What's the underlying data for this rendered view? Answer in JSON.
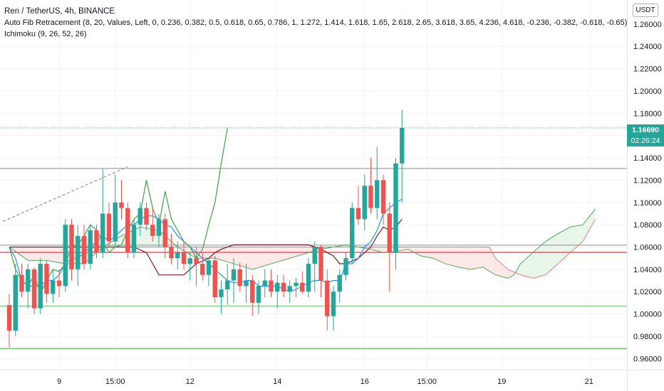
{
  "header": {
    "title": "Ren / TetherUS, 4h, BINANCE",
    "fib_indicator": "Auto Fib Retracement (8, 20, Values, Left, 0, 0.236, 0.382, 0.5, 0.618, 0.65, 0.786, 1, 1.272, 1.414, 1.618, 1.65, 2.618, 2.65, 3.618, 3.65, 4.236, 4.618, -0.236, -0.382, -0.618, -0.65)",
    "ichimoku_indicator": "Ichimoku (9, 26, 52, 26)"
  },
  "price_scale": {
    "currency": "USDT",
    "last_price": "1.16690",
    "countdown": "02:26:24"
  },
  "colors": {
    "bull": "#26a69a",
    "bear": "#ef5350",
    "conversion": "#2196f3",
    "base": "#801922",
    "lagging": "#43a047",
    "span_a": "#a5d6a7",
    "span_b": "#ef9a9a",
    "cloud_up": "#e8f5e9",
    "cloud_down": "#fde8e8"
  },
  "chart_data": {
    "type": "candlestick",
    "y_range": [
      0.95,
      1.2816
    ],
    "y_ticks": [
      "0.96000",
      "0.98000",
      "1.00000",
      "1.02000",
      "1.04000",
      "1.06000",
      "1.08000",
      "1.10000",
      "1.12000",
      "1.14000",
      "1.16000",
      "1.18000",
      "1.20000",
      "1.22000",
      "1.24000",
      "1.26000"
    ],
    "x_ticks": [
      {
        "i": 8,
        "label": "9"
      },
      {
        "i": 17,
        "label": "15:00"
      },
      {
        "i": 29,
        "label": "12"
      },
      {
        "i": 43,
        "label": "14"
      },
      {
        "i": 57,
        "label": "16"
      },
      {
        "i": 67,
        "label": "15:00"
      },
      {
        "i": 79,
        "label": "19"
      },
      {
        "i": 93,
        "label": "21"
      }
    ],
    "candles": [
      {
        "o": 1.008,
        "h": 1.018,
        "l": 0.97,
        "c": 0.985
      },
      {
        "o": 0.985,
        "h": 1.045,
        "l": 0.98,
        "c": 1.035
      },
      {
        "o": 1.035,
        "h": 1.045,
        "l": 1.015,
        "c": 1.02
      },
      {
        "o": 1.02,
        "h": 1.045,
        "l": 1.005,
        "c": 1.04
      },
      {
        "o": 1.04,
        "h": 1.042,
        "l": 1.0,
        "c": 1.005
      },
      {
        "o": 1.005,
        "h": 1.05,
        "l": 1.0,
        "c": 1.045
      },
      {
        "o": 1.045,
        "h": 1.048,
        "l": 1.01,
        "c": 1.018
      },
      {
        "o": 1.018,
        "h": 1.04,
        "l": 1.01,
        "c": 1.03
      },
      {
        "o": 1.03,
        "h": 1.04,
        "l": 1.015,
        "c": 1.025
      },
      {
        "o": 1.025,
        "h": 1.085,
        "l": 1.02,
        "c": 1.08
      },
      {
        "o": 1.08,
        "h": 1.085,
        "l": 1.03,
        "c": 1.04
      },
      {
        "o": 1.04,
        "h": 1.08,
        "l": 1.025,
        "c": 1.07
      },
      {
        "o": 1.07,
        "h": 1.08,
        "l": 1.04,
        "c": 1.045
      },
      {
        "o": 1.045,
        "h": 1.08,
        "l": 1.04,
        "c": 1.075
      },
      {
        "o": 1.075,
        "h": 1.08,
        "l": 1.05,
        "c": 1.055
      },
      {
        "o": 1.055,
        "h": 1.13,
        "l": 1.05,
        "c": 1.09
      },
      {
        "o": 1.09,
        "h": 1.1,
        "l": 1.06,
        "c": 1.065
      },
      {
        "o": 1.065,
        "h": 1.125,
        "l": 1.06,
        "c": 1.1
      },
      {
        "o": 1.1,
        "h": 1.12,
        "l": 1.085,
        "c": 1.095
      },
      {
        "o": 1.095,
        "h": 1.1,
        "l": 1.05,
        "c": 1.055
      },
      {
        "o": 1.055,
        "h": 1.085,
        "l": 1.05,
        "c": 1.08
      },
      {
        "o": 1.08,
        "h": 1.1,
        "l": 1.07,
        "c": 1.095
      },
      {
        "o": 1.095,
        "h": 1.1,
        "l": 1.075,
        "c": 1.08
      },
      {
        "o": 1.08,
        "h": 1.095,
        "l": 1.065,
        "c": 1.07
      },
      {
        "o": 1.07,
        "h": 1.09,
        "l": 1.06,
        "c": 1.085
      },
      {
        "o": 1.085,
        "h": 1.09,
        "l": 1.05,
        "c": 1.06
      },
      {
        "o": 1.06,
        "h": 1.072,
        "l": 1.045,
        "c": 1.05
      },
      {
        "o": 1.05,
        "h": 1.065,
        "l": 1.04,
        "c": 1.055
      },
      {
        "o": 1.055,
        "h": 1.065,
        "l": 1.04,
        "c": 1.045
      },
      {
        "o": 1.045,
        "h": 1.055,
        "l": 1.03,
        "c": 1.05
      },
      {
        "o": 1.05,
        "h": 1.06,
        "l": 1.025,
        "c": 1.045
      },
      {
        "o": 1.045,
        "h": 1.055,
        "l": 1.03,
        "c": 1.035
      },
      {
        "o": 1.035,
        "h": 1.05,
        "l": 1.025,
        "c": 1.048
      },
      {
        "o": 1.048,
        "h": 1.052,
        "l": 1.01,
        "c": 1.015
      },
      {
        "o": 1.015,
        "h": 1.03,
        "l": 1.0,
        "c": 1.022
      },
      {
        "o": 1.022,
        "h": 1.045,
        "l": 1.008,
        "c": 1.03
      },
      {
        "o": 1.03,
        "h": 1.05,
        "l": 1.01,
        "c": 1.04
      },
      {
        "o": 1.04,
        "h": 1.046,
        "l": 1.02,
        "c": 1.025
      },
      {
        "o": 1.025,
        "h": 1.045,
        "l": 1.01,
        "c": 1.03
      },
      {
        "o": 1.03,
        "h": 1.035,
        "l": 0.998,
        "c": 1.01
      },
      {
        "o": 1.01,
        "h": 1.03,
        "l": 1.0,
        "c": 1.025
      },
      {
        "o": 1.025,
        "h": 1.04,
        "l": 1.015,
        "c": 1.03
      },
      {
        "o": 1.03,
        "h": 1.04,
        "l": 1.015,
        "c": 1.02
      },
      {
        "o": 1.02,
        "h": 1.035,
        "l": 1.005,
        "c": 1.028
      },
      {
        "o": 1.028,
        "h": 1.035,
        "l": 1.015,
        "c": 1.02
      },
      {
        "o": 1.02,
        "h": 1.03,
        "l": 1.01,
        "c": 1.025
      },
      {
        "o": 1.025,
        "h": 1.032,
        "l": 1.015,
        "c": 1.028
      },
      {
        "o": 1.028,
        "h": 1.038,
        "l": 1.018,
        "c": 1.02
      },
      {
        "o": 1.02,
        "h": 1.05,
        "l": 1.015,
        "c": 1.045
      },
      {
        "o": 1.045,
        "h": 1.065,
        "l": 1.02,
        "c": 1.06
      },
      {
        "o": 1.06,
        "h": 1.062,
        "l": 1.015,
        "c": 1.03
      },
      {
        "o": 1.03,
        "h": 1.04,
        "l": 0.985,
        "c": 0.998
      },
      {
        "o": 0.998,
        "h": 1.025,
        "l": 0.985,
        "c": 1.02
      },
      {
        "o": 1.02,
        "h": 1.04,
        "l": 1.01,
        "c": 1.035
      },
      {
        "o": 1.035,
        "h": 1.055,
        "l": 1.03,
        "c": 1.05
      },
      {
        "o": 1.05,
        "h": 1.1,
        "l": 1.045,
        "c": 1.095
      },
      {
        "o": 1.095,
        "h": 1.115,
        "l": 1.08,
        "c": 1.085
      },
      {
        "o": 1.085,
        "h": 1.125,
        "l": 1.075,
        "c": 1.115
      },
      {
        "o": 1.115,
        "h": 1.14,
        "l": 1.09,
        "c": 1.095
      },
      {
        "o": 1.095,
        "h": 1.15,
        "l": 1.085,
        "c": 1.12
      },
      {
        "o": 1.12,
        "h": 1.125,
        "l": 1.08,
        "c": 1.09
      },
      {
        "o": 1.09,
        "h": 1.1,
        "l": 1.02,
        "c": 1.055
      },
      {
        "o": 1.055,
        "h": 1.14,
        "l": 1.04,
        "c": 1.135
      },
      {
        "o": 1.135,
        "h": 1.183,
        "l": 1.1,
        "c": 1.1669
      }
    ],
    "fib_lines": [
      {
        "y": 1.1305,
        "color": "#9598a1"
      },
      {
        "y": 1.0617,
        "color": "#9598a1"
      },
      {
        "y": 1.0552,
        "color": "#f23645"
      },
      {
        "y": 1.007,
        "color": "#81c784"
      },
      {
        "y": 0.969,
        "color": "#4caf50"
      }
    ],
    "trend_line": {
      "from": {
        "i": -1,
        "y": 1.083
      },
      "to": {
        "i": 19,
        "y": 1.132
      }
    },
    "tenkan": [
      [
        0,
        1.06
      ],
      [
        1,
        1.05
      ],
      [
        2,
        1.03
      ],
      [
        3,
        1.025
      ],
      [
        4,
        1.025
      ],
      [
        5,
        1.025
      ],
      [
        6,
        1.03
      ],
      [
        7,
        1.03
      ],
      [
        8,
        1.035
      ],
      [
        9,
        1.045
      ],
      [
        10,
        1.05
      ],
      [
        11,
        1.05
      ],
      [
        12,
        1.055
      ],
      [
        13,
        1.06
      ],
      [
        14,
        1.065
      ],
      [
        15,
        1.07
      ],
      [
        16,
        1.065
      ],
      [
        17,
        1.07
      ],
      [
        18,
        1.075
      ],
      [
        19,
        1.08
      ],
      [
        20,
        1.08
      ],
      [
        21,
        1.085
      ],
      [
        22,
        1.088
      ],
      [
        23,
        1.088
      ],
      [
        24,
        1.085
      ],
      [
        25,
        1.08
      ],
      [
        26,
        1.078
      ],
      [
        27,
        1.07
      ],
      [
        28,
        1.065
      ],
      [
        29,
        1.06
      ],
      [
        30,
        1.055
      ],
      [
        31,
        1.05
      ],
      [
        32,
        1.045
      ],
      [
        33,
        1.04
      ],
      [
        34,
        1.035
      ],
      [
        35,
        1.03
      ],
      [
        36,
        1.028
      ],
      [
        37,
        1.028
      ],
      [
        38,
        1.03
      ],
      [
        39,
        1.03
      ],
      [
        40,
        1.025
      ],
      [
        41,
        1.025
      ],
      [
        42,
        1.025
      ],
      [
        43,
        1.025
      ],
      [
        44,
        1.022
      ],
      [
        45,
        1.02
      ],
      [
        46,
        1.022
      ],
      [
        47,
        1.025
      ],
      [
        48,
        1.028
      ],
      [
        49,
        1.03
      ],
      [
        50,
        1.03
      ],
      [
        51,
        1.028
      ],
      [
        52,
        1.03
      ],
      [
        53,
        1.03
      ],
      [
        54,
        1.045
      ],
      [
        55,
        1.045
      ],
      [
        56,
        1.05
      ],
      [
        57,
        1.06
      ],
      [
        58,
        1.065
      ],
      [
        59,
        1.075
      ],
      [
        60,
        1.09
      ],
      [
        61,
        1.095
      ],
      [
        62,
        1.1
      ],
      [
        63,
        1.103
      ]
    ],
    "kijun": [
      [
        0,
        1.06
      ],
      [
        3,
        1.06
      ],
      [
        6,
        1.06
      ],
      [
        9,
        1.06
      ],
      [
        12,
        1.06
      ],
      [
        15,
        1.06
      ],
      [
        18,
        1.06
      ],
      [
        20,
        1.06
      ],
      [
        22,
        1.055
      ],
      [
        23,
        1.045
      ],
      [
        24,
        1.035
      ],
      [
        26,
        1.035
      ],
      [
        28,
        1.035
      ],
      [
        30,
        1.045
      ],
      [
        32,
        1.05
      ],
      [
        33,
        1.055
      ],
      [
        34,
        1.058
      ],
      [
        36,
        1.062
      ],
      [
        39,
        1.062
      ],
      [
        42,
        1.062
      ],
      [
        45,
        1.062
      ],
      [
        48,
        1.062
      ],
      [
        49,
        1.06
      ],
      [
        50,
        1.058
      ],
      [
        51,
        1.055
      ],
      [
        52,
        1.052
      ],
      [
        53,
        1.045
      ],
      [
        54,
        1.045
      ],
      [
        56,
        1.05
      ],
      [
        58,
        1.06
      ],
      [
        59,
        1.07
      ],
      [
        60,
        1.078
      ],
      [
        61,
        1.075
      ],
      [
        62,
        1.078
      ],
      [
        63,
        1.085
      ]
    ],
    "chikou": [
      [
        0,
        1.06
      ],
      [
        1,
        1.04
      ],
      [
        2,
        1.03
      ],
      [
        3,
        1.025
      ],
      [
        4,
        1.035
      ],
      [
        5,
        1.018
      ],
      [
        6,
        1.03
      ],
      [
        7,
        1.04
      ],
      [
        8,
        1.038
      ],
      [
        9,
        1.045
      ],
      [
        10,
        1.06
      ],
      [
        11,
        1.062
      ],
      [
        12,
        1.07
      ],
      [
        13,
        1.08
      ],
      [
        14,
        1.075
      ],
      [
        15,
        1.065
      ],
      [
        16,
        1.055
      ],
      [
        17,
        1.06
      ],
      [
        18,
        1.062
      ],
      [
        19,
        1.075
      ],
      [
        20,
        1.085
      ],
      [
        21,
        1.09
      ],
      [
        22,
        1.12
      ],
      [
        23,
        1.095
      ],
      [
        24,
        1.08
      ],
      [
        25,
        1.11
      ],
      [
        26,
        1.085
      ],
      [
        27,
        1.075
      ],
      [
        28,
        1.065
      ],
      [
        29,
        1.06
      ],
      [
        30,
        1.05
      ],
      [
        31,
        1.058
      ],
      [
        32,
        1.08
      ],
      [
        33,
        1.1
      ],
      [
        34,
        1.135
      ],
      [
        35,
        1.167
      ]
    ],
    "span_a": [
      [
        0,
        1.06
      ],
      [
        3,
        1.048
      ],
      [
        6,
        1.048
      ],
      [
        9,
        1.045
      ],
      [
        12,
        1.045
      ],
      [
        15,
        1.06
      ],
      [
        18,
        1.07
      ],
      [
        21,
        1.078
      ],
      [
        24,
        1.075
      ],
      [
        27,
        1.06
      ],
      [
        30,
        1.05
      ],
      [
        33,
        1.05
      ],
      [
        36,
        1.045
      ],
      [
        39,
        1.04
      ],
      [
        42,
        1.045
      ],
      [
        45,
        1.05
      ],
      [
        48,
        1.055
      ],
      [
        50,
        1.058
      ],
      [
        52,
        1.06
      ],
      [
        54,
        1.062
      ],
      [
        56,
        1.06
      ],
      [
        58,
        1.058
      ],
      [
        60,
        1.055
      ],
      [
        62,
        1.056
      ],
      [
        64,
        1.058
      ],
      [
        66,
        1.052
      ],
      [
        68,
        1.05
      ],
      [
        70,
        1.045
      ],
      [
        72,
        1.042
      ],
      [
        74,
        1.04
      ],
      [
        76,
        1.042
      ],
      [
        78,
        1.035
      ],
      [
        80,
        1.032
      ],
      [
        81,
        1.035
      ],
      [
        82,
        1.045
      ],
      [
        84,
        1.055
      ],
      [
        86,
        1.065
      ],
      [
        88,
        1.072
      ],
      [
        90,
        1.078
      ],
      [
        92,
        1.08
      ],
      [
        94,
        1.094
      ]
    ],
    "span_b": [
      [
        0,
        1.06
      ],
      [
        10,
        1.06
      ],
      [
        20,
        1.06
      ],
      [
        30,
        1.06
      ],
      [
        40,
        1.06
      ],
      [
        50,
        1.06
      ],
      [
        60,
        1.06
      ],
      [
        70,
        1.06
      ],
      [
        75,
        1.06
      ],
      [
        77,
        1.06
      ],
      [
        78,
        1.05
      ],
      [
        80,
        1.04
      ],
      [
        82,
        1.035
      ],
      [
        84,
        1.032
      ],
      [
        86,
        1.035
      ],
      [
        88,
        1.045
      ],
      [
        90,
        1.055
      ],
      [
        92,
        1.065
      ],
      [
        94,
        1.085
      ]
    ]
  }
}
